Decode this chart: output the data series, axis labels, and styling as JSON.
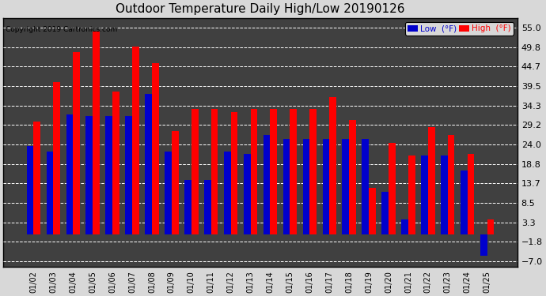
{
  "title": "Outdoor Temperature Daily High/Low 20190126",
  "copyright": "Copyright 2019 Cartronics.com",
  "dates": [
    "01/02",
    "01/03",
    "01/04",
    "01/05",
    "01/06",
    "01/07",
    "01/08",
    "01/09",
    "01/10",
    "01/11",
    "01/12",
    "01/13",
    "01/14",
    "01/15",
    "01/16",
    "01/17",
    "01/18",
    "01/19",
    "01/20",
    "01/21",
    "01/22",
    "01/23",
    "01/24",
    "01/25"
  ],
  "high": [
    30.0,
    40.5,
    48.5,
    54.0,
    38.0,
    50.0,
    45.5,
    27.5,
    33.5,
    33.5,
    32.5,
    33.5,
    33.5,
    33.5,
    33.5,
    36.5,
    30.5,
    12.5,
    24.5,
    21.0,
    28.5,
    26.5,
    21.5,
    4.0
  ],
  "low": [
    23.5,
    22.0,
    32.0,
    31.5,
    31.5,
    31.5,
    37.5,
    22.0,
    14.5,
    14.5,
    22.0,
    21.5,
    26.5,
    25.5,
    25.5,
    25.5,
    25.5,
    25.5,
    11.5,
    4.0,
    21.0,
    21.0,
    17.0,
    -5.5
  ],
  "high_color": "#ff0000",
  "low_color": "#0000cc",
  "bg_color": "#d8d8d8",
  "plot_bg_color": "#404040",
  "yticks": [
    -7.0,
    -1.8,
    3.3,
    8.5,
    13.7,
    18.8,
    24.0,
    29.2,
    34.3,
    39.5,
    44.7,
    49.8,
    55.0
  ],
  "ylim": [
    -8.5,
    57.5
  ],
  "title_fontsize": 11,
  "legend_label_low": "Low  (°F)",
  "legend_label_high": "High  (°F)"
}
